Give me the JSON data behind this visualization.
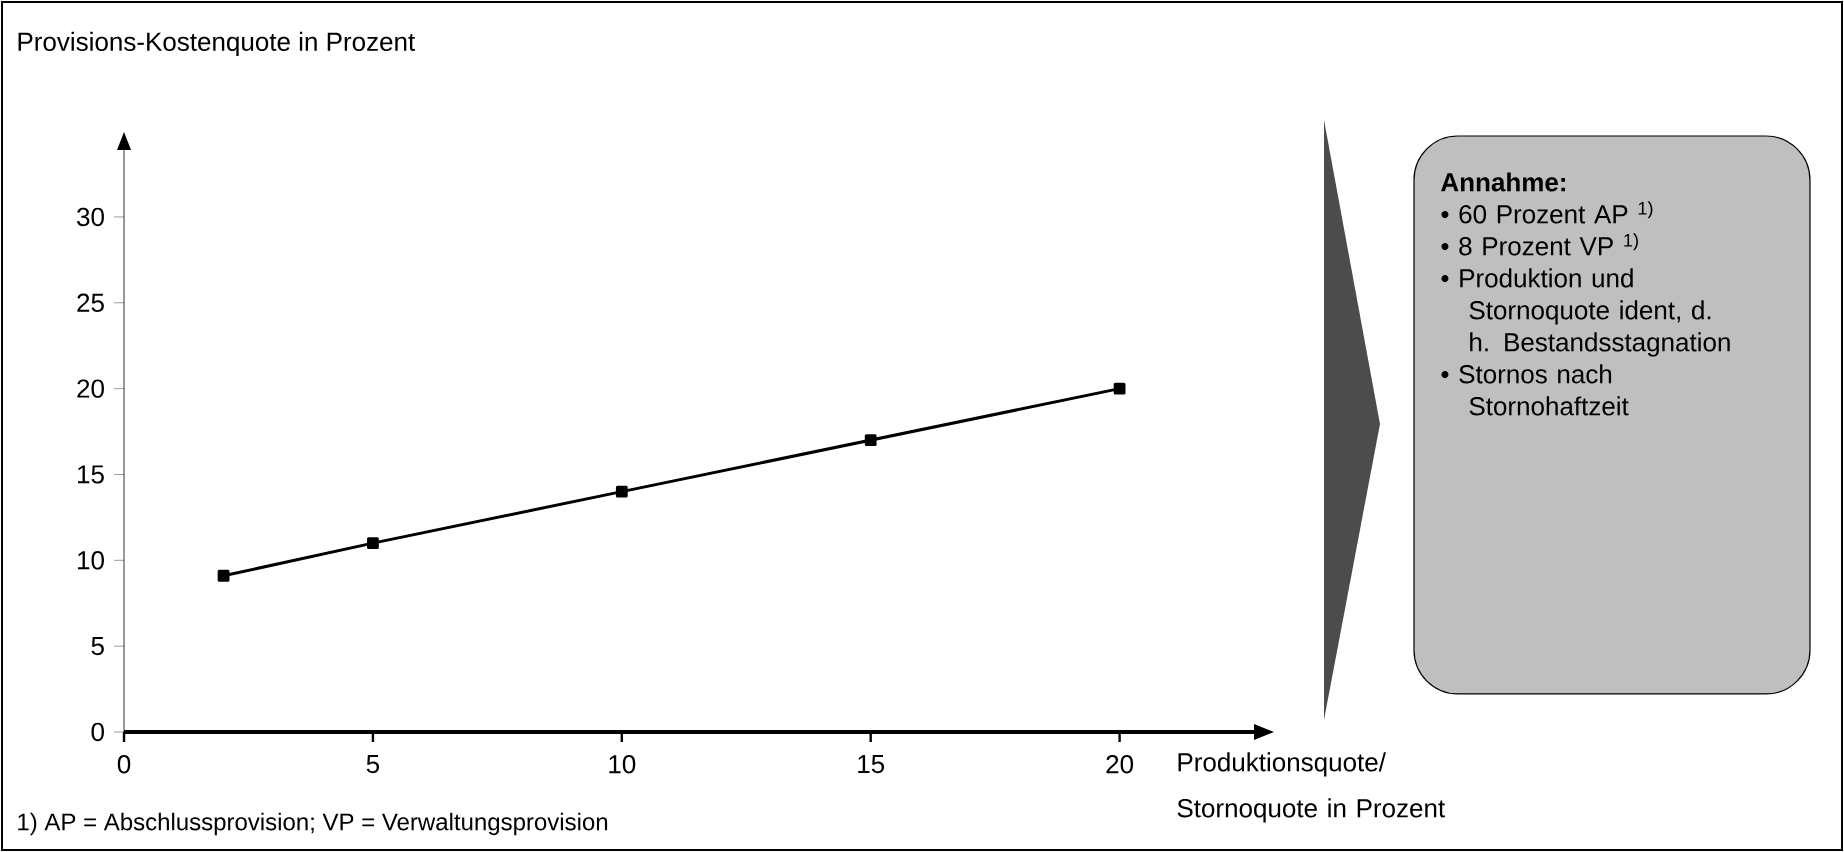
{
  "chart_data": {
    "type": "line",
    "xlabel": "Produktionsquote/ Stornoquote in Prozent",
    "ylabel": "Provisions-Kostenquote in Prozent",
    "x": [
      2,
      5,
      10,
      15,
      20
    ],
    "series": [
      {
        "color": "#000000",
        "values": [
          9.1,
          11,
          14,
          17,
          20
        ]
      }
    ],
    "xlim": [
      0,
      22.7
    ],
    "ylim": [
      0,
      33.9
    ],
    "xticks": [
      0,
      5,
      10,
      15,
      20
    ],
    "yticks": [
      0,
      5,
      10,
      15,
      20,
      25,
      30
    ],
    "marker": "square",
    "line_style": "solid",
    "grid": false,
    "annotations": [
      "**Annahme:**",
      "• 60 Prozent AP $^{1)}$",
      "• 8 Prozent VP $^{1)}$",
      "• Produktion und Stornoquote ident, d. h. Bestandsstagnation",
      "• Stornos nach Stornohaftzeit",
      "1) AP = Abschlussprovision; VP = Verwaltungsprovision"
    ]
  }
}
